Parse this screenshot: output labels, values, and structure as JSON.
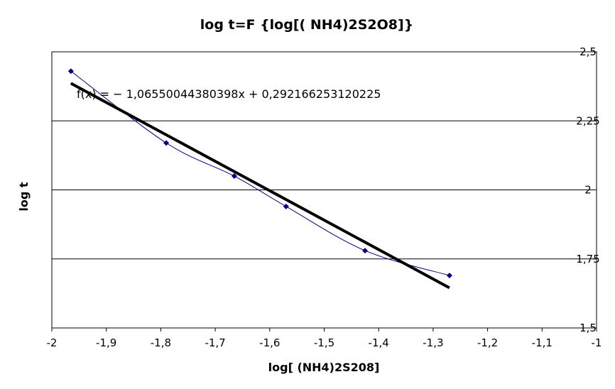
{
  "chart_data": {
    "type": "scatter",
    "title": "log t=F {log[( NH4)2S2O8]}",
    "xlabel": "log[ (NH4)2S208]",
    "ylabel": "log t",
    "xlim": [
      -2,
      -1
    ],
    "ylim": [
      1.5,
      2.5
    ],
    "x_ticks": [
      "-2",
      "-1,9",
      "-1,8",
      "-1,7",
      "-1,6",
      "-1,5",
      "-1,4",
      "-1,3",
      "-1,2",
      "-1,1",
      "-1"
    ],
    "y_ticks": [
      "1,5",
      "1,75",
      "2",
      "2,25",
      "2,5"
    ],
    "grid": "horizontal",
    "series": [
      {
        "points": [
          [
            -1.965,
            2.43
          ],
          [
            -1.79,
            2.17
          ],
          [
            -1.665,
            2.05
          ],
          [
            -1.57,
            1.94
          ],
          [
            -1.425,
            1.78
          ],
          [
            -1.27,
            1.69
          ]
        ],
        "marker": "diamond",
        "line": "smoothed",
        "color": "#000080"
      }
    ],
    "trendline": {
      "slope": -1.06550044380398,
      "intercept": 0.292166253120225,
      "x_range": [
        -1.965,
        -1.27
      ],
      "equation_text": "f(x) = − 1,06550044380398x + 0,292166253120225",
      "color": "#000000"
    }
  }
}
